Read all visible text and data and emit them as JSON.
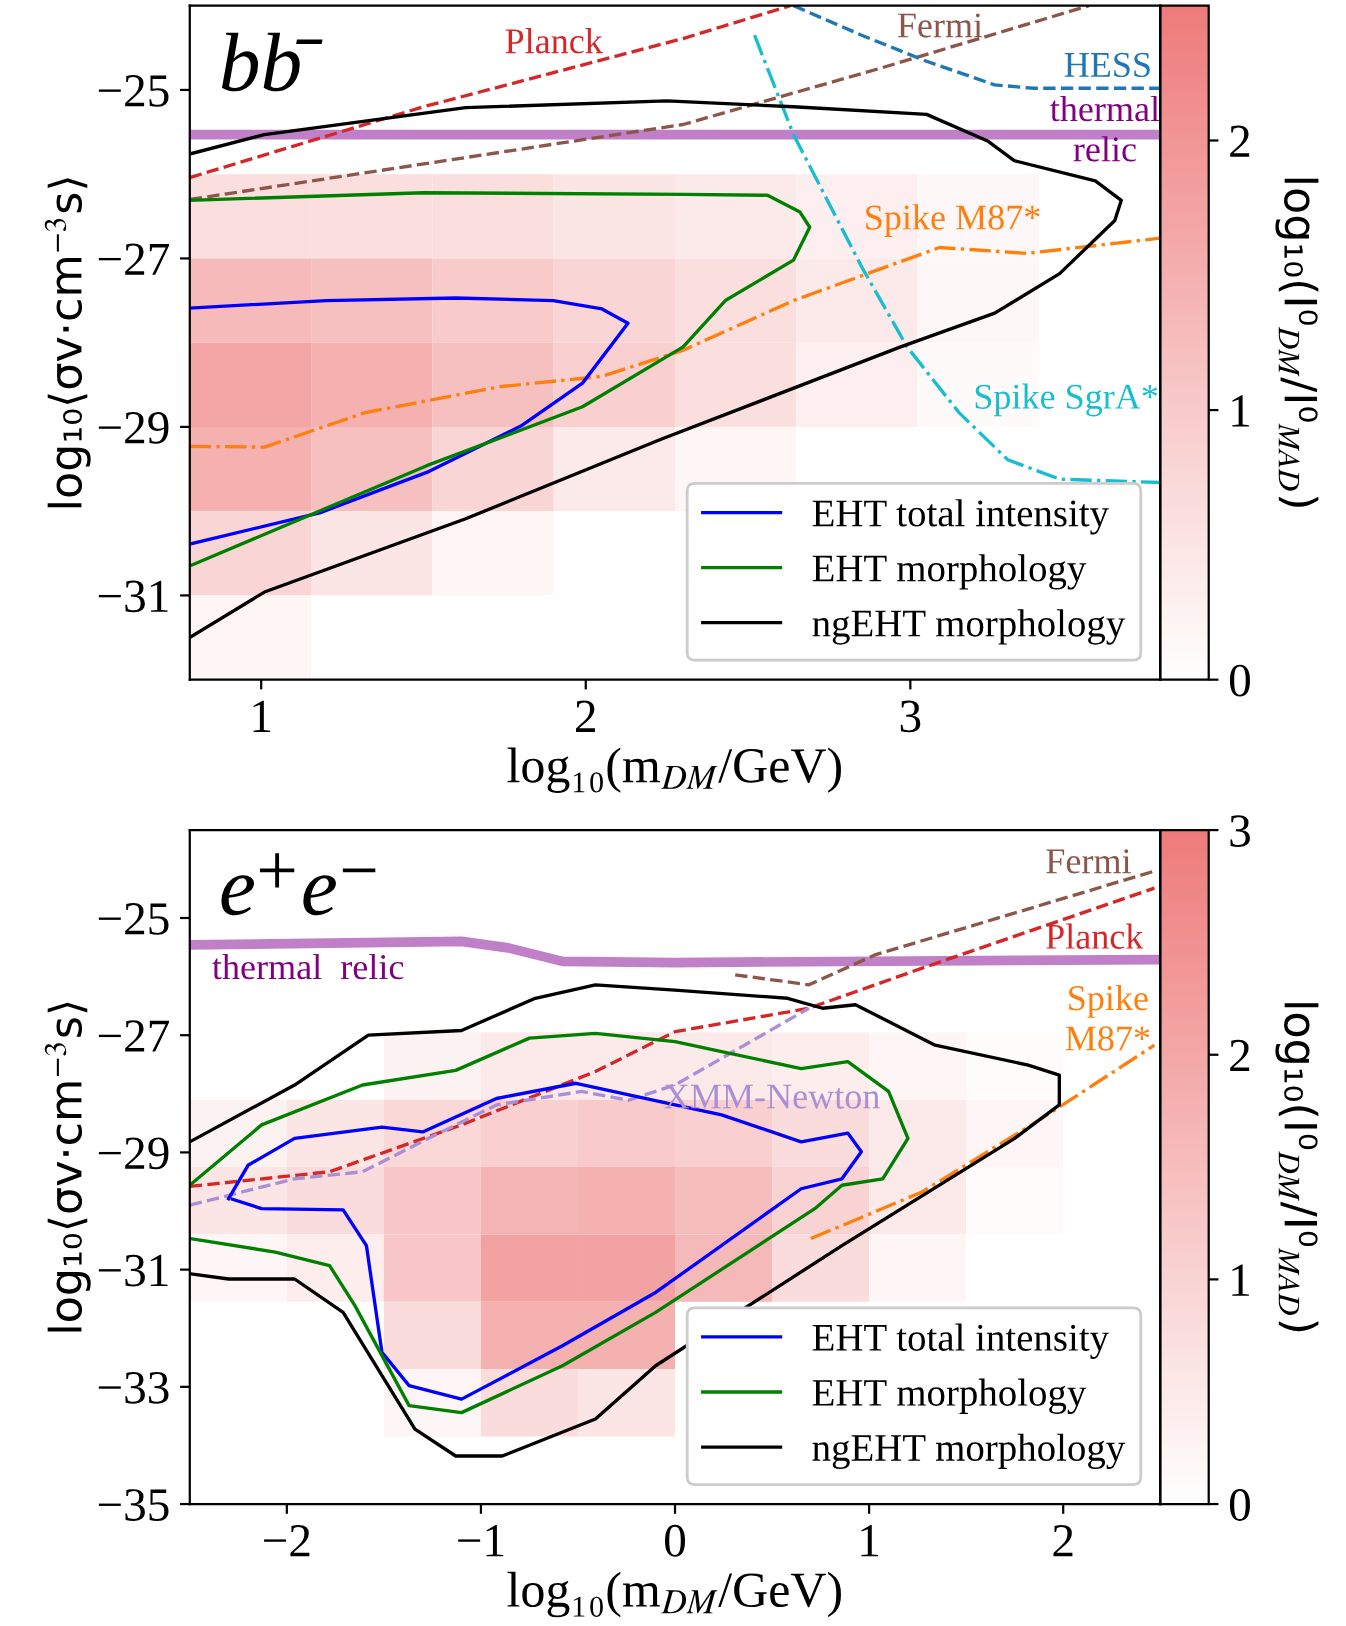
{
  "chart_data": [
    {
      "type": "heatmap",
      "categories": [
        null,
        null,
        null,
        null,
        null,
        null,
        null,
        null
      ],
      "y_categories": [
        null,
        null,
        null,
        null,
        null,
        null,
        null,
        null
      ],
      "tick_labels": false,
      "clabel": "log₁₀(I⁰$_{DM}$/I⁰$_{MAD}$)",
      "clim": [
        0,
        2.5
      ],
      "cticks": [
        0,
        1,
        2
      ],
      "colors": [
        "#ffffff",
        "#ee7b7b"
      ],
      "cells": [
        [
          0,
          0,
          0,
          0,
          0,
          0,
          0,
          0
        ],
        [
          0,
          0,
          0,
          0,
          0,
          0,
          0,
          0
        ],
        [
          0.6,
          0.6,
          0.6,
          0.5,
          0.4,
          0.3,
          0.15,
          0
        ],
        [
          1.3,
          1.2,
          1.0,
          0.8,
          0.6,
          0.4,
          0.15,
          0
        ],
        [
          1.7,
          1.5,
          1.2,
          0.9,
          0.6,
          0.3,
          0.1,
          0
        ],
        [
          1.5,
          1.2,
          0.8,
          0.4,
          0.2,
          0,
          0,
          0
        ],
        [
          0.8,
          0.5,
          0.2,
          0,
          0,
          0,
          0,
          0
        ],
        [
          0.2,
          0,
          0,
          0,
          0,
          0,
          0,
          0
        ]
      ]
    },
    {
      "type": "line",
      "title": "bb̄",
      "xlabel": "log₁₀(m$_{DM}$/GeV)",
      "ylabel": "log₁₀⟨σv·cm$^{−3}$s⟩",
      "xlim": [
        0.78,
        3.77
      ],
      "ylim": [
        -32,
        -24
      ],
      "xticks": [
        1,
        2,
        3
      ],
      "yticks": [
        -25,
        -27,
        -29,
        -31
      ],
      "grid": false,
      "legend": "bottom right",
      "series": [
        {
          "name": "thermal\nrelic",
          "color": "#c080c8",
          "line_style": "solid",
          "x": [
            0.78,
            3.77
          ],
          "values": [
            -25.53,
            -25.53
          ]
        },
        {
          "name": "Planck",
          "color": "#d62728",
          "line_style": "dashed",
          "x": [
            0.78,
            1.5,
            2.3,
            2.63
          ],
          "values": [
            -26.04,
            -25.2,
            -24.39,
            -24.0
          ]
        },
        {
          "name": "Fermi",
          "color": "#8c564b",
          "line_style": "dashed",
          "x": [
            0.78,
            2.3,
            2.91,
            3.55
          ],
          "values": [
            -26.3,
            -25.41,
            -24.74,
            -24.0
          ]
        },
        {
          "name": "HESS",
          "color": "#1f77b4",
          "line_style": "dashed",
          "x": [
            2.64,
            2.85,
            3.05,
            3.26,
            3.38,
            3.77
          ],
          "values": [
            -24.0,
            -24.35,
            -24.66,
            -24.94,
            -24.98,
            -24.98
          ]
        },
        {
          "name": "Spike M87*",
          "color": "#ff7f0e",
          "line_style": "dashdot",
          "x": [
            0.78,
            1.01,
            1.32,
            1.74,
            2.05,
            2.3,
            2.64,
            3.09,
            3.36,
            3.77
          ],
          "values": [
            -29.23,
            -29.24,
            -28.83,
            -28.52,
            -28.4,
            -28.09,
            -27.5,
            -26.87,
            -26.94,
            -26.76
          ]
        },
        {
          "name": "Spike SgrA*",
          "color": "#17becf",
          "line_style": "dashdot",
          "x": [
            2.52,
            2.64,
            2.85,
            2.99,
            3.15,
            3.3,
            3.46,
            3.77
          ],
          "values": [
            -24.35,
            -25.53,
            -27.1,
            -28.05,
            -28.83,
            -29.39,
            -29.62,
            -29.66
          ]
        },
        {
          "name": "EHT total intensity",
          "color": "#0000ff",
          "line_style": "solid",
          "x": [
            0.78,
            1.2,
            1.6,
            1.9,
            2.05,
            2.13,
            1.99,
            1.8,
            1.51,
            1.18,
            0.78
          ],
          "values": [
            -27.59,
            -27.5,
            -27.47,
            -27.5,
            -27.6,
            -27.77,
            -28.48,
            -28.99,
            -29.54,
            -30.02,
            -30.39
          ]
        },
        {
          "name": "EHT morphology",
          "color": "#008000",
          "line_style": "solid",
          "x": [
            0.78,
            1.5,
            2.3,
            2.56,
            2.66,
            2.69,
            2.64,
            2.43,
            2.3,
            1.99,
            1.51,
            0.78
          ],
          "values": [
            -26.31,
            -26.22,
            -26.24,
            -26.25,
            -26.45,
            -26.63,
            -27.02,
            -27.5,
            -28.05,
            -28.76,
            -29.46,
            -30.65
          ]
        },
        {
          "name": "ngEHT morphology",
          "color": "#000000",
          "line_style": "solid",
          "x": [
            0.78,
            1.01,
            1.63,
            2.25,
            2.64,
            3.05,
            3.24,
            3.32,
            3.57,
            3.65,
            3.63,
            3.46,
            3.26,
            2.97,
            2.23,
            1.63,
            1.01,
            0.78
          ],
          "values": [
            -25.76,
            -25.53,
            -25.21,
            -25.13,
            -25.2,
            -25.29,
            -25.61,
            -25.84,
            -26.08,
            -26.31,
            -26.55,
            -27.18,
            -27.65,
            -28.05,
            -29.15,
            -30.09,
            -30.96,
            -31.5
          ]
        }
      ]
    },
    {
      "type": "heatmap",
      "categories": [
        null,
        null,
        null,
        null,
        null,
        null,
        null,
        null,
        null,
        null
      ],
      "y_categories": [
        null,
        null,
        null,
        null,
        null,
        null,
        null,
        null,
        null,
        null
      ],
      "tick_labels": false,
      "clabel": "log₁₀(I⁰$_{DM}$/I⁰$_{MAD}$)",
      "clim": [
        0,
        3
      ],
      "cticks": [
        0,
        1,
        2,
        3
      ],
      "colors": [
        "#ffffff",
        "#ee7b7b"
      ],
      "cells": [
        [
          0,
          0,
          0,
          0,
          0,
          0,
          0,
          0,
          0,
          0
        ],
        [
          0,
          0,
          0,
          0,
          0,
          0,
          0,
          0,
          0,
          0
        ],
        [
          0,
          0,
          0,
          0,
          0,
          0,
          0,
          0,
          0,
          0
        ],
        [
          0,
          0,
          0.3,
          0.5,
          0.5,
          0.5,
          0.4,
          0.2,
          0.1,
          0
        ],
        [
          0.3,
          0.6,
          0.9,
          1.1,
          1.2,
          1.1,
          0.8,
          0.5,
          0.2,
          0
        ],
        [
          0.6,
          0.8,
          1.3,
          1.7,
          1.8,
          1.5,
          1.0,
          0.5,
          0.1,
          0
        ],
        [
          0.2,
          0.4,
          1.3,
          2.1,
          2.1,
          1.6,
          0.8,
          0.2,
          0,
          0
        ],
        [
          0,
          0,
          0.8,
          1.8,
          1.8,
          null,
          null,
          0,
          0,
          0
        ],
        [
          0,
          0,
          0.2,
          0.8,
          0.6,
          null,
          0,
          0,
          0,
          0
        ],
        [
          0,
          0,
          0,
          0,
          0,
          0,
          0,
          0,
          0,
          0
        ]
      ]
    },
    {
      "type": "line",
      "title": "e$^{+}$e$^{−}$",
      "xlabel": "log₁₀(m$_{DM}$/GeV)",
      "ylabel": "log₁₀⟨σv·cm$^{−3}$s⟩",
      "xlim": [
        -2.5,
        2.5
      ],
      "ylim": [
        -35,
        -23.5
      ],
      "xticks": [
        -2,
        -1,
        0,
        1,
        2
      ],
      "yticks": [
        -25,
        -27,
        -29,
        -31,
        -33,
        -35
      ],
      "grid": false,
      "legend": "bottom right",
      "series": [
        {
          "name": "thermal  relic",
          "color": "#c080c8",
          "line_style": "solid",
          "x": [
            -2.5,
            -1.1,
            -0.86,
            -0.58,
            0.0,
            2.47
          ],
          "values": [
            -25.46,
            -25.4,
            -25.51,
            -25.74,
            -25.76,
            -25.71
          ]
        },
        {
          "name": "Planck",
          "color": "#d62728",
          "line_style": "dashed",
          "x": [
            -2.5,
            -1.78,
            -1.1,
            -0.41,
            0.0,
            0.69,
            1.27,
            2.47
          ],
          "values": [
            -29.58,
            -29.33,
            -28.53,
            -27.62,
            -26.94,
            -26.54,
            -25.86,
            -24.49
          ]
        },
        {
          "name": "Fermi",
          "color": "#8c564b",
          "line_style": "dashed",
          "x": [
            0.31,
            0.69,
            1.03,
            2.47
          ],
          "values": [
            -25.97,
            -26.14,
            -25.63,
            -24.2
          ]
        },
        {
          "name": "XMM-Newton",
          "color": "#a98fd6",
          "line_style": "dashed",
          "x": [
            -2.5,
            -1.96,
            -1.61,
            -1.27,
            -0.92,
            -0.48,
            -0.24,
            0.0,
            0.69
          ],
          "values": [
            -29.9,
            -29.45,
            -29.33,
            -28.76,
            -28.19,
            -27.96,
            -28.11,
            -27.85,
            -26.54
          ]
        },
        {
          "name": "Spike\nM87*",
          "color": "#ff7f0e",
          "line_style": "dashdot",
          "x": [
            0.7,
            1.27,
            1.89,
            2.47
          ],
          "values": [
            -30.47,
            -29.68,
            -28.42,
            -27.17
          ]
        },
        {
          "name": "EHT total intensity",
          "color": "#0000ff",
          "line_style": "solid",
          "x": [
            -2.3,
            -2.2,
            -1.96,
            -1.51,
            -1.3,
            -0.92,
            -0.51,
            0.0,
            0.24,
            0.65,
            0.89,
            0.96,
            0.86,
            0.65,
            -0.1,
            -0.58,
            -1.1,
            -1.37,
            -1.51,
            -1.59,
            -1.71,
            -2.13,
            -2.28
          ],
          "values": [
            -29.79,
            -29.22,
            -28.76,
            -28.57,
            -28.65,
            -28.08,
            -27.82,
            -28.19,
            -28.36,
            -28.82,
            -28.67,
            -28.99,
            -29.45,
            -29.62,
            -31.39,
            -32.3,
            -33.21,
            -32.98,
            -32.41,
            -30.59,
            -29.98,
            -29.96,
            -29.8
          ]
        },
        {
          "name": "EHT morphology",
          "color": "#008000",
          "line_style": "solid",
          "x": [
            -2.5,
            -2.13,
            -1.61,
            -1.13,
            -0.75,
            -0.41,
            0.0,
            0.24,
            0.65,
            0.89,
            1.1,
            1.2,
            1.07,
            0.86,
            0.72,
            -0.1,
            -0.58,
            -1.1,
            -1.37,
            -1.65,
            -1.78,
            -2.06,
            -2.5
          ],
          "values": [
            -29.56,
            -28.53,
            -27.85,
            -27.6,
            -27.05,
            -26.97,
            -27.11,
            -27.28,
            -27.57,
            -27.45,
            -27.96,
            -28.76,
            -29.45,
            -29.56,
            -29.96,
            -31.73,
            -32.64,
            -33.44,
            -33.32,
            -31.61,
            -30.93,
            -30.7,
            -30.47
          ]
        },
        {
          "name": "ngEHT morphology",
          "color": "#000000",
          "line_style": "solid",
          "x": [
            -2.5,
            -1.96,
            -1.58,
            -1.1,
            -0.72,
            -0.41,
            0.0,
            0.58,
            0.76,
            0.93,
            1.34,
            1.82,
            1.98,
            1.98,
            1.75,
            0.86,
            -0.1,
            -0.41,
            -0.89,
            -1.13,
            -1.34,
            -1.71,
            -1.96,
            -2.3,
            -2.5
          ],
          "values": [
            -28.82,
            -27.85,
            -27.0,
            -26.92,
            -26.37,
            -26.14,
            -26.23,
            -26.37,
            -26.54,
            -26.48,
            -27.17,
            -27.51,
            -27.68,
            -28.19,
            -28.76,
            -30.59,
            -32.64,
            -33.55,
            -34.18,
            -34.18,
            -33.72,
            -31.73,
            -31.16,
            -31.16,
            -31.07
          ]
        }
      ]
    }
  ]
}
